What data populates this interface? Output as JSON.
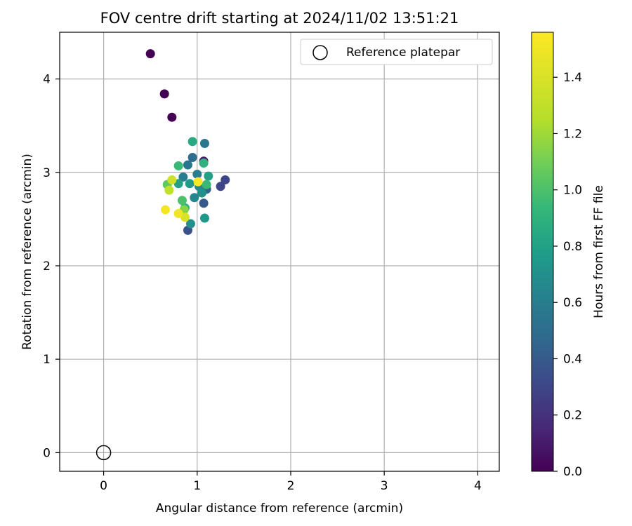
{
  "chart_data": {
    "type": "scatter",
    "title": "FOV centre drift starting at 2024/11/02 13:51:21",
    "xlabel": "Angular distance from reference (arcmin)",
    "ylabel": "Rotation from reference (arcmin)",
    "xlim": [
      -0.47,
      4.23
    ],
    "ylim": [
      -0.2,
      4.5
    ],
    "xticks": [
      0,
      1,
      2,
      3,
      4
    ],
    "yticks": [
      0,
      1,
      2,
      3,
      4
    ],
    "grid": true,
    "legend_location": "top-right",
    "colormap": "viridis",
    "colorbar": {
      "label": "Hours from first FF file",
      "range": [
        0.0,
        1.56
      ],
      "ticks": [
        "0.0",
        "0.2",
        "0.4",
        "0.6",
        "0.8",
        "1.0",
        "1.2",
        "1.4"
      ]
    },
    "series": [
      {
        "name": "Reference platepar",
        "marker": "open-circle",
        "points": [
          {
            "x": 0.0,
            "y": 0.0
          }
        ]
      },
      {
        "marker": "filled-circle",
        "color_by": "hours",
        "points": [
          {
            "x": 0.5,
            "y": 4.27,
            "c": 0.0
          },
          {
            "x": 0.65,
            "y": 3.84,
            "c": 0.0
          },
          {
            "x": 0.73,
            "y": 3.59,
            "c": 0.0
          },
          {
            "x": 1.07,
            "y": 3.12,
            "c": 0.1
          },
          {
            "x": 1.3,
            "y": 2.92,
            "c": 0.3
          },
          {
            "x": 1.25,
            "y": 2.85,
            "c": 0.3
          },
          {
            "x": 0.9,
            "y": 2.38,
            "c": 0.35
          },
          {
            "x": 1.07,
            "y": 2.67,
            "c": 0.4
          },
          {
            "x": 1.1,
            "y": 2.82,
            "c": 0.45
          },
          {
            "x": 0.95,
            "y": 3.16,
            "c": 0.5
          },
          {
            "x": 0.9,
            "y": 3.08,
            "c": 0.55
          },
          {
            "x": 1.08,
            "y": 3.31,
            "c": 0.55
          },
          {
            "x": 0.85,
            "y": 2.95,
            "c": 0.6
          },
          {
            "x": 1.0,
            "y": 2.98,
            "c": 0.6
          },
          {
            "x": 0.97,
            "y": 2.73,
            "c": 0.65
          },
          {
            "x": 1.02,
            "y": 2.85,
            "c": 0.65
          },
          {
            "x": 0.93,
            "y": 2.45,
            "c": 0.7
          },
          {
            "x": 1.05,
            "y": 2.78,
            "c": 0.7
          },
          {
            "x": 0.92,
            "y": 2.88,
            "c": 0.75
          },
          {
            "x": 1.08,
            "y": 2.51,
            "c": 0.75
          },
          {
            "x": 1.12,
            "y": 2.96,
            "c": 0.8
          },
          {
            "x": 0.8,
            "y": 2.88,
            "c": 0.8
          },
          {
            "x": 0.95,
            "y": 3.33,
            "c": 0.85
          },
          {
            "x": 1.07,
            "y": 3.1,
            "c": 0.9
          },
          {
            "x": 0.87,
            "y": 2.62,
            "c": 0.9
          },
          {
            "x": 1.1,
            "y": 2.87,
            "c": 0.95
          },
          {
            "x": 0.8,
            "y": 3.07,
            "c": 0.95
          },
          {
            "x": 0.84,
            "y": 2.7,
            "c": 1.0
          },
          {
            "x": 0.68,
            "y": 2.87,
            "c": 1.05
          },
          {
            "x": 0.86,
            "y": 2.6,
            "c": 1.15
          },
          {
            "x": 0.7,
            "y": 2.81,
            "c": 1.3
          },
          {
            "x": 0.73,
            "y": 2.92,
            "c": 1.35
          },
          {
            "x": 0.87,
            "y": 2.52,
            "c": 1.4
          },
          {
            "x": 0.8,
            "y": 2.56,
            "c": 1.5
          },
          {
            "x": 0.66,
            "y": 2.6,
            "c": 1.52
          },
          {
            "x": 1.01,
            "y": 2.9,
            "c": 1.55
          }
        ]
      }
    ]
  }
}
